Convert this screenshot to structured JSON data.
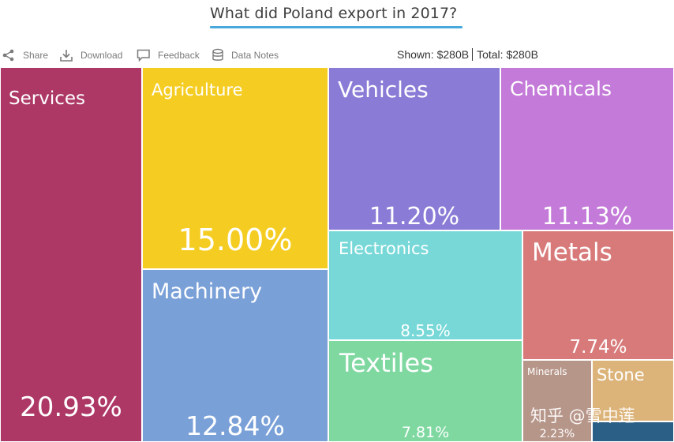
{
  "header": {
    "title": "What did Poland export in 2017?"
  },
  "toolbar": {
    "share_label": "Share",
    "download_label": "Download",
    "feedback_label": "Feedback",
    "data_notes_label": "Data Notes"
  },
  "summary": {
    "shown_label": "Shown:",
    "shown_value": "$280B",
    "total_label": "Total:",
    "total_value": "$280B"
  },
  "chart_data": {
    "type": "treemap",
    "title": "What did Poland export in 2017?",
    "total": "$280B",
    "series": [
      {
        "name": "Services",
        "percent": 20.93,
        "label": "20.93%",
        "color": "#ad3866"
      },
      {
        "name": "Agriculture",
        "percent": 15.0,
        "label": "15.00%",
        "color": "#f5cd22"
      },
      {
        "name": "Machinery",
        "percent": 12.84,
        "label": "12.84%",
        "color": "#7aa0d8"
      },
      {
        "name": "Vehicles",
        "percent": 11.2,
        "label": "11.20%",
        "color": "#8a7bd6"
      },
      {
        "name": "Chemicals",
        "percent": 11.13,
        "label": "11.13%",
        "color": "#c37ad8"
      },
      {
        "name": "Electronics",
        "percent": 8.55,
        "label": "8.55%",
        "color": "#78d8d8"
      },
      {
        "name": "Textiles",
        "percent": 7.81,
        "label": "7.81%",
        "color": "#7ed8a0"
      },
      {
        "name": "Metals",
        "percent": 7.74,
        "label": "7.74%",
        "color": "#d87a7a"
      },
      {
        "name": "Minerals",
        "percent": 2.23,
        "label": "2.23%",
        "color": "#b7968a"
      },
      {
        "name": "Stone",
        "percent": null,
        "label": "",
        "color": "#dcb47a"
      },
      {
        "name": "",
        "percent": null,
        "label": "",
        "color": "#2b5f86"
      }
    ]
  },
  "watermark": {
    "text": "知乎 @雪中莲"
  }
}
